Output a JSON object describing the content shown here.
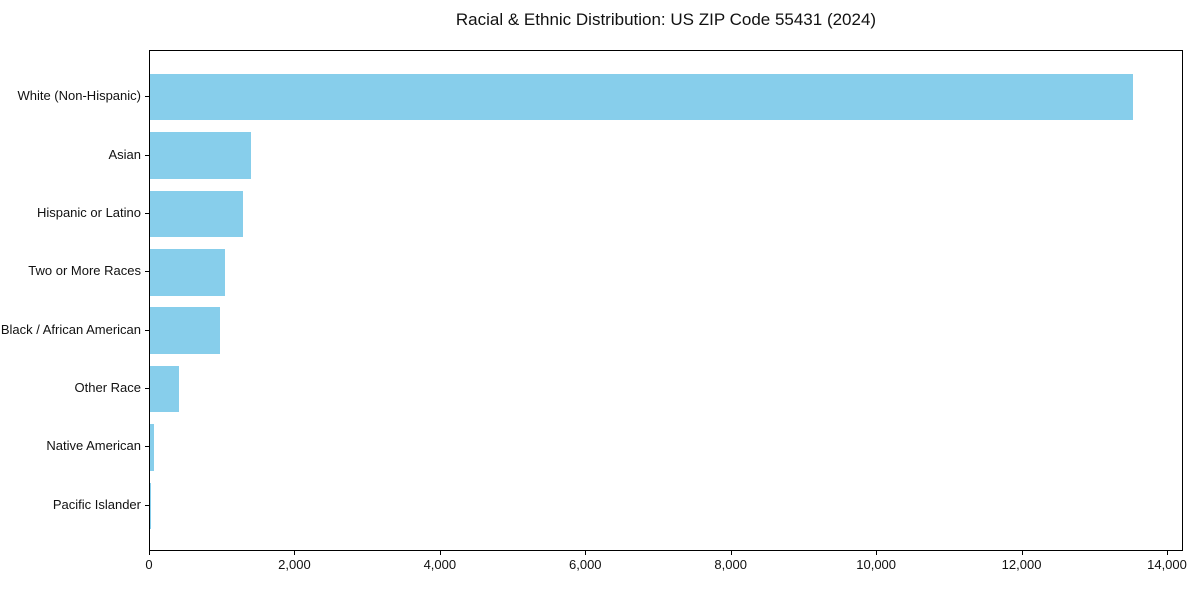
{
  "chart_data": {
    "type": "bar",
    "orientation": "horizontal",
    "title": "Racial & Ethnic Distribution: US ZIP Code 55431 (2024)",
    "categories": [
      "White (Non-Hispanic)",
      "Asian",
      "Hispanic or Latino",
      "Two or More Races",
      "Black / African American",
      "Other Race",
      "Native American",
      "Pacific Islander"
    ],
    "values": [
      13520,
      1390,
      1280,
      1030,
      960,
      400,
      55,
      10
    ],
    "xlabel": "",
    "ylabel": "",
    "xlim": [
      0,
      14220
    ],
    "x_ticks": [
      0,
      2000,
      4000,
      6000,
      8000,
      10000,
      12000,
      14000
    ],
    "x_tick_labels": [
      "0",
      "2,000",
      "4,000",
      "6,000",
      "8,000",
      "10,000",
      "12,000",
      "14,000"
    ],
    "bar_color": "#87CEEB",
    "grid": false,
    "legend": "none",
    "bars_sorted_descending": true
  }
}
